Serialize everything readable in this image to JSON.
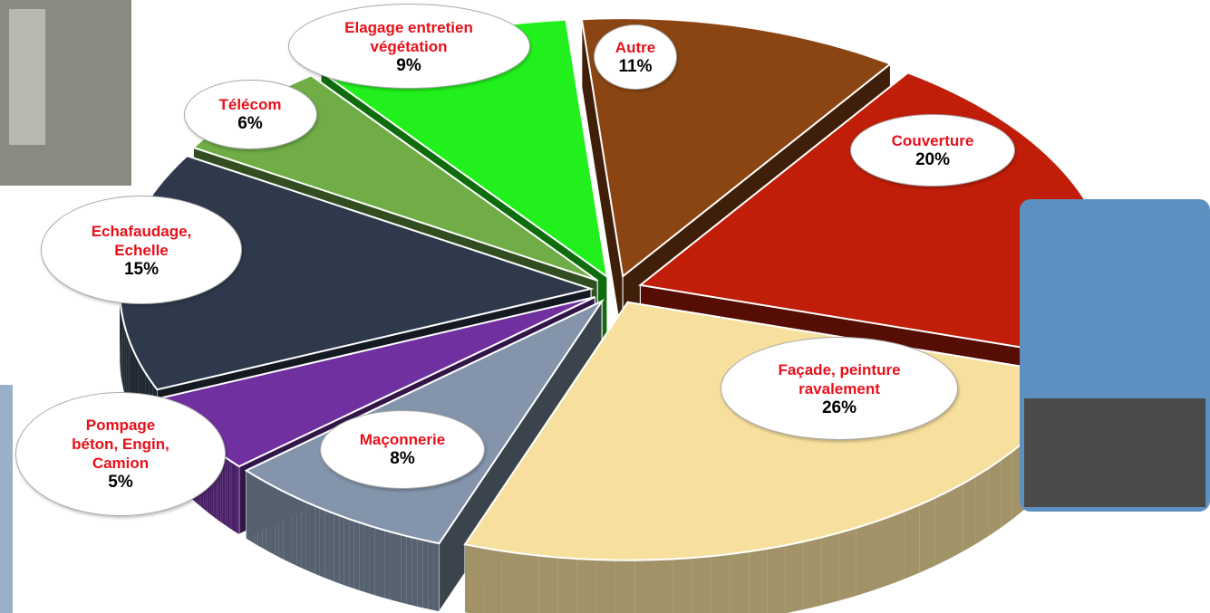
{
  "chart_data": {
    "type": "pie",
    "categories": [
      "Autre",
      "Couverture",
      "Façade, peinture\nravalement",
      "Maçonnerie",
      "Pompage\nbéton,  Engin,\nCamion",
      "Echafaudage,\nEchelle",
      "Télécom",
      "Elagage entretien\nvégétation"
    ],
    "values": [
      11,
      20,
      26,
      8,
      5,
      15,
      6,
      9
    ],
    "value_labels": [
      "11%",
      "20%",
      "26%",
      "8%",
      "5%",
      "15%",
      "6%",
      "9%"
    ],
    "colors": [
      "#8b4513",
      "#c01e08",
      "#f7e09e",
      "#8495ab",
      "#7030a0",
      "#2e3a4c",
      "#70ad47",
      "#22f01c"
    ]
  }
}
